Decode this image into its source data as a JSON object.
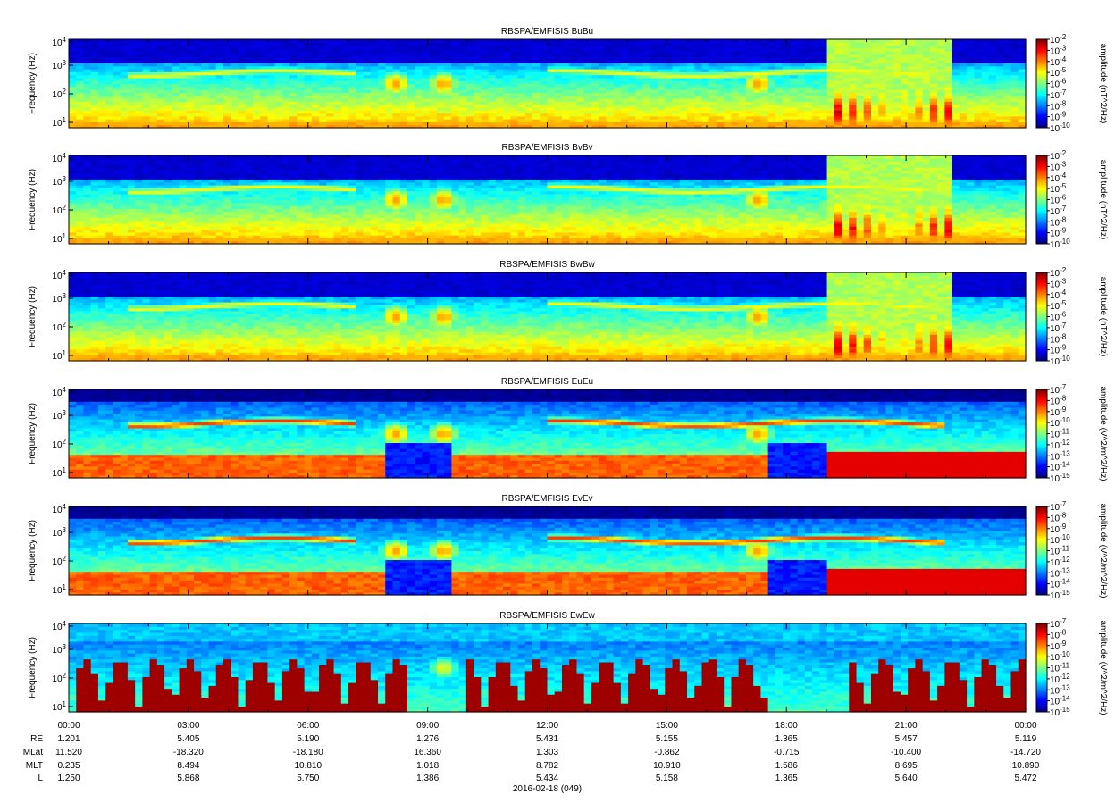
{
  "chart_data": {
    "type": "heatmap",
    "panels": [
      {
        "title": "RBSPA/EMFISIS  BuBu",
        "ylabel": "Frequency (Hz)",
        "yticks": [
          "10^4",
          "10^3",
          "10^2",
          "10^1"
        ],
        "colorbar_label": "amplitude (nT^2/Hz)",
        "colorbar_ticks": [
          "10^-2",
          "10^-3",
          "10^-4",
          "10^-5",
          "10^-6",
          "10^-7",
          "10^-8",
          "10^-9",
          "10^-10"
        ]
      },
      {
        "title": "RBSPA/EMFISIS  BvBv",
        "ylabel": "Frequency (Hz)",
        "yticks": [
          "10^4",
          "10^3",
          "10^2",
          "10^1"
        ],
        "colorbar_label": "amplitude (nT^2/Hz)",
        "colorbar_ticks": [
          "10^-2",
          "10^-3",
          "10^-4",
          "10^-5",
          "10^-6",
          "10^-7",
          "10^-8",
          "10^-9",
          "10^-10"
        ]
      },
      {
        "title": "RBSPA/EMFISIS  BwBw",
        "ylabel": "Frequency (Hz)",
        "yticks": [
          "10^4",
          "10^3",
          "10^2",
          "10^1"
        ],
        "colorbar_label": "amplitude (nT^2/Hz)",
        "colorbar_ticks": [
          "10^-2",
          "10^-3",
          "10^-4",
          "10^-5",
          "10^-6",
          "10^-7",
          "10^-8",
          "10^-9",
          "10^-10"
        ]
      },
      {
        "title": "RBSPA/EMFISIS  EuEu",
        "ylabel": "Frequency (Hz)",
        "yticks": [
          "10^4",
          "10^3",
          "10^2",
          "10^1"
        ],
        "colorbar_label": "amplitude (V^2/m^2/Hz)",
        "colorbar_ticks": [
          "10^-7",
          "10^-8",
          "10^-9",
          "10^-10",
          "10^-11",
          "10^-12",
          "10^-13",
          "10^-14",
          "10^-15"
        ]
      },
      {
        "title": "RBSPA/EMFISIS  EvEv",
        "ylabel": "Frequency (Hz)",
        "yticks": [
          "10^4",
          "10^3",
          "10^2",
          "10^1"
        ],
        "colorbar_label": "amplitude (V^2/m^2/Hz)",
        "colorbar_ticks": [
          "10^-7",
          "10^-8",
          "10^-9",
          "10^-10",
          "10^-11",
          "10^-12",
          "10^-13",
          "10^-14",
          "10^-15"
        ]
      },
      {
        "title": "RBSPA/EMFISIS  EwEw",
        "ylabel": "Frequency (Hz)",
        "yticks": [
          "10^4",
          "10^3",
          "10^2",
          "10^1"
        ],
        "colorbar_label": "amplitude (V^2/m^2/Hz)",
        "colorbar_ticks": [
          "10^-7",
          "10^-8",
          "10^-9",
          "10^-10",
          "10^-11",
          "10^-12",
          "10^-13",
          "10^-14",
          "10^-15"
        ]
      }
    ],
    "x_ticks": [
      "00:00",
      "03:00",
      "06:00",
      "09:00",
      "12:00",
      "15:00",
      "18:00",
      "21:00",
      "00:00"
    ],
    "ephemeris": [
      {
        "label": "RE",
        "values": [
          "1.201",
          "5.405",
          "5.190",
          "1.276",
          "5.431",
          "5.155",
          "1.365",
          "5.457",
          "5.119"
        ]
      },
      {
        "label": "MLat",
        "values": [
          "11.520",
          "-18.320",
          "-18.180",
          "16.360",
          "1.303",
          "-0.862",
          "-0.715",
          "-10.400",
          "-14.720"
        ]
      },
      {
        "label": "MLT",
        "values": [
          "0.235",
          "8.494",
          "10.810",
          "1.018",
          "8.782",
          "10.910",
          "1.586",
          "8.695",
          "10.890"
        ]
      },
      {
        "label": "L",
        "values": [
          "1.250",
          "5.868",
          "5.750",
          "1.386",
          "5.434",
          "5.158",
          "1.365",
          "5.640",
          "5.472"
        ]
      }
    ],
    "xlabel": "2016-02-18 (049)",
    "features": {
      "chorus_bands_hours": [
        [
          1.5,
          7.2
        ],
        [
          12.0,
          22.0
        ]
      ],
      "plasmaspheric_hiss_blobs_hours": [
        8.2,
        9.4,
        17.3
      ],
      "magnetosonic_fringe_hours": [
        19.0,
        22.2
      ],
      "ew_periodic_interference_hours": [
        [
          0.2,
          8.4
        ],
        [
          10.0,
          17.5
        ],
        [
          19.5,
          24.0
        ]
      ]
    }
  }
}
